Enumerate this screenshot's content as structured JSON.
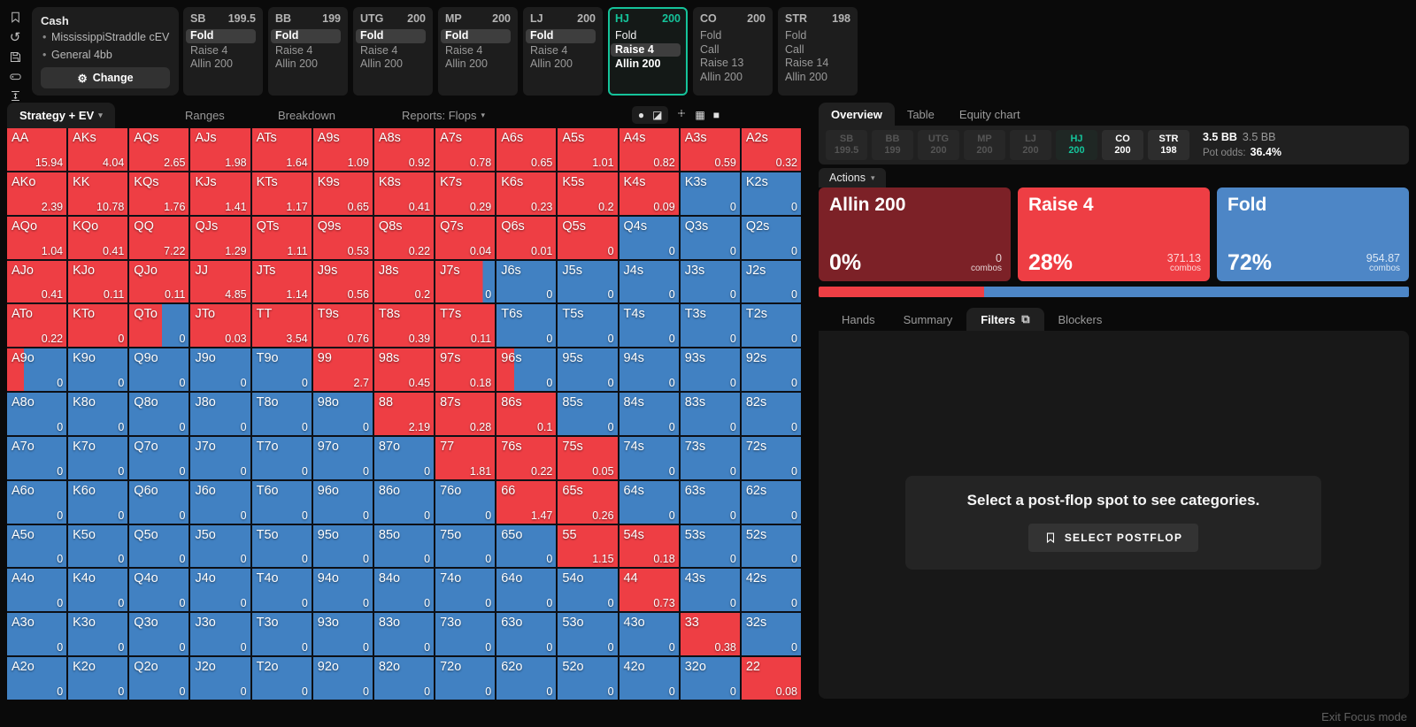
{
  "colors": {
    "red": "#ee3e44",
    "blue": "#4181c2",
    "dark_red": "#7c2127",
    "fold_card_blue": "#4d86c6",
    "teal": "#15c39a"
  },
  "rail_icons": [
    "bookmark-icon",
    "reset-icon",
    "save-icon",
    "controller-icon",
    "row-height-icon"
  ],
  "header": {
    "cash_title": "Cash",
    "config_lines": [
      "MississippiStraddle cEV",
      "General 4bb"
    ],
    "change_label": "Change",
    "gear_glyph": "⚙"
  },
  "top_positions": [
    {
      "name": "SB",
      "stack": "199.5",
      "active": false,
      "actions": [
        {
          "label": "Fold",
          "style": "pill"
        },
        {
          "label": "Raise 4",
          "style": "grey"
        },
        {
          "label": "Allin 200",
          "style": "grey"
        }
      ]
    },
    {
      "name": "BB",
      "stack": "199",
      "active": false,
      "actions": [
        {
          "label": "Fold",
          "style": "pill"
        },
        {
          "label": "Raise 4",
          "style": "grey"
        },
        {
          "label": "Allin 200",
          "style": "grey"
        }
      ]
    },
    {
      "name": "UTG",
      "stack": "200",
      "active": false,
      "actions": [
        {
          "label": "Fold",
          "style": "pill"
        },
        {
          "label": "Raise 4",
          "style": "grey"
        },
        {
          "label": "Allin 200",
          "style": "grey"
        }
      ]
    },
    {
      "name": "MP",
      "stack": "200",
      "active": false,
      "actions": [
        {
          "label": "Fold",
          "style": "pill"
        },
        {
          "label": "Raise 4",
          "style": "grey"
        },
        {
          "label": "Allin 200",
          "style": "grey"
        }
      ]
    },
    {
      "name": "LJ",
      "stack": "200",
      "active": false,
      "actions": [
        {
          "label": "Fold",
          "style": "pill"
        },
        {
          "label": "Raise 4",
          "style": "grey"
        },
        {
          "label": "Allin 200",
          "style": "grey"
        }
      ]
    },
    {
      "name": "HJ",
      "stack": "200",
      "active": true,
      "actions": [
        {
          "label": "Fold",
          "style": "white"
        },
        {
          "label": "Raise 4",
          "style": "pill"
        },
        {
          "label": "Allin 200",
          "style": "bold"
        }
      ]
    },
    {
      "name": "CO",
      "stack": "200",
      "active": false,
      "actions": [
        {
          "label": "Fold",
          "style": "grey"
        },
        {
          "label": "Call",
          "style": "grey"
        },
        {
          "label": "Raise 13",
          "style": "grey"
        },
        {
          "label": "Allin 200",
          "style": "grey"
        }
      ]
    },
    {
      "name": "STR",
      "stack": "198",
      "active": false,
      "actions": [
        {
          "label": "Fold",
          "style": "grey"
        },
        {
          "label": "Call",
          "style": "grey"
        },
        {
          "label": "Raise 14",
          "style": "grey"
        },
        {
          "label": "Allin 200",
          "style": "grey"
        }
      ]
    }
  ],
  "strategy_row": {
    "tabs": [
      {
        "label": "Strategy + EV",
        "caret": "▾",
        "active": true
      },
      {
        "label": "Ranges",
        "active": false
      },
      {
        "label": "Breakdown",
        "active": false
      },
      {
        "label": "Reports: Flops",
        "caret": "▾",
        "active": false
      }
    ],
    "view_icons": [
      "pawn-icon",
      "contrast-square-icon",
      "crosshair-icon",
      "grid-icon",
      "square-icon"
    ],
    "glyphs": {
      "pawn": "●",
      "contrast": "◪",
      "grid": "▦",
      "square": "■"
    }
  },
  "matrix": {
    "legend": {
      "r": "raise (red)",
      "b": "fold (blue)",
      "number": "red fraction of split cell"
    },
    "rows": [
      [
        [
          "AA",
          "15.94",
          "r"
        ],
        [
          "AKs",
          "4.04",
          "r"
        ],
        [
          "AQs",
          "2.65",
          "r"
        ],
        [
          "AJs",
          "1.98",
          "r"
        ],
        [
          "ATs",
          "1.64",
          "r"
        ],
        [
          "A9s",
          "1.09",
          "r"
        ],
        [
          "A8s",
          "0.92",
          "r"
        ],
        [
          "A7s",
          "0.78",
          "r"
        ],
        [
          "A6s",
          "0.65",
          "r"
        ],
        [
          "A5s",
          "1.01",
          "r"
        ],
        [
          "A4s",
          "0.82",
          "r"
        ],
        [
          "A3s",
          "0.59",
          "r"
        ],
        [
          "A2s",
          "0.32",
          "r"
        ]
      ],
      [
        [
          "AKo",
          "2.39",
          "r"
        ],
        [
          "KK",
          "10.78",
          "r"
        ],
        [
          "KQs",
          "1.76",
          "r"
        ],
        [
          "KJs",
          "1.41",
          "r"
        ],
        [
          "KTs",
          "1.17",
          "r"
        ],
        [
          "K9s",
          "0.65",
          "r"
        ],
        [
          "K8s",
          "0.41",
          "r"
        ],
        [
          "K7s",
          "0.29",
          "r"
        ],
        [
          "K6s",
          "0.23",
          "r"
        ],
        [
          "K5s",
          "0.2",
          "r"
        ],
        [
          "K4s",
          "0.09",
          "r"
        ],
        [
          "K3s",
          "0",
          "b"
        ],
        [
          "K2s",
          "0",
          "b"
        ]
      ],
      [
        [
          "AQo",
          "1.04",
          "r"
        ],
        [
          "KQo",
          "0.41",
          "r"
        ],
        [
          "QQ",
          "7.22",
          "r"
        ],
        [
          "QJs",
          "1.29",
          "r"
        ],
        [
          "QTs",
          "1.11",
          "r"
        ],
        [
          "Q9s",
          "0.53",
          "r"
        ],
        [
          "Q8s",
          "0.22",
          "r"
        ],
        [
          "Q7s",
          "0.04",
          "r"
        ],
        [
          "Q6s",
          "0.01",
          "r"
        ],
        [
          "Q5s",
          "0",
          "r"
        ],
        [
          "Q4s",
          "0",
          "b"
        ],
        [
          "Q3s",
          "0",
          "b"
        ],
        [
          "Q2s",
          "0",
          "b"
        ]
      ],
      [
        [
          "AJo",
          "0.41",
          "r"
        ],
        [
          "KJo",
          "0.11",
          "r"
        ],
        [
          "QJo",
          "0.11",
          "r"
        ],
        [
          "JJ",
          "4.85",
          "r"
        ],
        [
          "JTs",
          "1.14",
          "r"
        ],
        [
          "J9s",
          "0.56",
          "r"
        ],
        [
          "J8s",
          "0.2",
          "r"
        ],
        [
          "J7s",
          "0",
          0.8
        ],
        [
          "J6s",
          "0",
          "b"
        ],
        [
          "J5s",
          "0",
          "b"
        ],
        [
          "J4s",
          "0",
          "b"
        ],
        [
          "J3s",
          "0",
          "b"
        ],
        [
          "J2s",
          "0",
          "b"
        ]
      ],
      [
        [
          "ATo",
          "0.22",
          "r"
        ],
        [
          "KTo",
          "0",
          "r"
        ],
        [
          "QTo",
          "0",
          0.55
        ],
        [
          "JTo",
          "0.03",
          "r"
        ],
        [
          "TT",
          "3.54",
          "r"
        ],
        [
          "T9s",
          "0.76",
          "r"
        ],
        [
          "T8s",
          "0.39",
          "r"
        ],
        [
          "T7s",
          "0.11",
          "r"
        ],
        [
          "T6s",
          "0",
          "b"
        ],
        [
          "T5s",
          "0",
          "b"
        ],
        [
          "T4s",
          "0",
          "b"
        ],
        [
          "T3s",
          "0",
          "b"
        ],
        [
          "T2s",
          "0",
          "b"
        ]
      ],
      [
        [
          "A9o",
          "0",
          0.28
        ],
        [
          "K9o",
          "0",
          "b"
        ],
        [
          "Q9o",
          "0",
          "b"
        ],
        [
          "J9o",
          "0",
          "b"
        ],
        [
          "T9o",
          "0",
          "b"
        ],
        [
          "99",
          "2.7",
          "r"
        ],
        [
          "98s",
          "0.45",
          "r"
        ],
        [
          "97s",
          "0.18",
          "r"
        ],
        [
          "96s",
          "0",
          0.3
        ],
        [
          "95s",
          "0",
          "b"
        ],
        [
          "94s",
          "0",
          "b"
        ],
        [
          "93s",
          "0",
          "b"
        ],
        [
          "92s",
          "0",
          "b"
        ]
      ],
      [
        [
          "A8o",
          "0",
          "b"
        ],
        [
          "K8o",
          "0",
          "b"
        ],
        [
          "Q8o",
          "0",
          "b"
        ],
        [
          "J8o",
          "0",
          "b"
        ],
        [
          "T8o",
          "0",
          "b"
        ],
        [
          "98o",
          "0",
          "b"
        ],
        [
          "88",
          "2.19",
          "r"
        ],
        [
          "87s",
          "0.28",
          "r"
        ],
        [
          "86s",
          "0.1",
          "r"
        ],
        [
          "85s",
          "0",
          "b"
        ],
        [
          "84s",
          "0",
          "b"
        ],
        [
          "83s",
          "0",
          "b"
        ],
        [
          "82s",
          "0",
          "b"
        ]
      ],
      [
        [
          "A7o",
          "0",
          "b"
        ],
        [
          "K7o",
          "0",
          "b"
        ],
        [
          "Q7o",
          "0",
          "b"
        ],
        [
          "J7o",
          "0",
          "b"
        ],
        [
          "T7o",
          "0",
          "b"
        ],
        [
          "97o",
          "0",
          "b"
        ],
        [
          "87o",
          "0",
          "b"
        ],
        [
          "77",
          "1.81",
          "r"
        ],
        [
          "76s",
          "0.22",
          "r"
        ],
        [
          "75s",
          "0.05",
          "r"
        ],
        [
          "74s",
          "0",
          "b"
        ],
        [
          "73s",
          "0",
          "b"
        ],
        [
          "72s",
          "0",
          "b"
        ]
      ],
      [
        [
          "A6o",
          "0",
          "b"
        ],
        [
          "K6o",
          "0",
          "b"
        ],
        [
          "Q6o",
          "0",
          "b"
        ],
        [
          "J6o",
          "0",
          "b"
        ],
        [
          "T6o",
          "0",
          "b"
        ],
        [
          "96o",
          "0",
          "b"
        ],
        [
          "86o",
          "0",
          "b"
        ],
        [
          "76o",
          "0",
          "b"
        ],
        [
          "66",
          "1.47",
          "r"
        ],
        [
          "65s",
          "0.26",
          "r"
        ],
        [
          "64s",
          "0",
          "b"
        ],
        [
          "63s",
          "0",
          "b"
        ],
        [
          "62s",
          "0",
          "b"
        ]
      ],
      [
        [
          "A5o",
          "0",
          "b"
        ],
        [
          "K5o",
          "0",
          "b"
        ],
        [
          "Q5o",
          "0",
          "b"
        ],
        [
          "J5o",
          "0",
          "b"
        ],
        [
          "T5o",
          "0",
          "b"
        ],
        [
          "95o",
          "0",
          "b"
        ],
        [
          "85o",
          "0",
          "b"
        ],
        [
          "75o",
          "0",
          "b"
        ],
        [
          "65o",
          "0",
          "b"
        ],
        [
          "55",
          "1.15",
          "r"
        ],
        [
          "54s",
          "0.18",
          "r"
        ],
        [
          "53s",
          "0",
          "b"
        ],
        [
          "52s",
          "0",
          "b"
        ]
      ],
      [
        [
          "A4o",
          "0",
          "b"
        ],
        [
          "K4o",
          "0",
          "b"
        ],
        [
          "Q4o",
          "0",
          "b"
        ],
        [
          "J4o",
          "0",
          "b"
        ],
        [
          "T4o",
          "0",
          "b"
        ],
        [
          "94o",
          "0",
          "b"
        ],
        [
          "84o",
          "0",
          "b"
        ],
        [
          "74o",
          "0",
          "b"
        ],
        [
          "64o",
          "0",
          "b"
        ],
        [
          "54o",
          "0",
          "b"
        ],
        [
          "44",
          "0.73",
          "r"
        ],
        [
          "43s",
          "0",
          "b"
        ],
        [
          "42s",
          "0",
          "b"
        ]
      ],
      [
        [
          "A3o",
          "0",
          "b"
        ],
        [
          "K3o",
          "0",
          "b"
        ],
        [
          "Q3o",
          "0",
          "b"
        ],
        [
          "J3o",
          "0",
          "b"
        ],
        [
          "T3o",
          "0",
          "b"
        ],
        [
          "93o",
          "0",
          "b"
        ],
        [
          "83o",
          "0",
          "b"
        ],
        [
          "73o",
          "0",
          "b"
        ],
        [
          "63o",
          "0",
          "b"
        ],
        [
          "53o",
          "0",
          "b"
        ],
        [
          "43o",
          "0",
          "b"
        ],
        [
          "33",
          "0.38",
          "r"
        ],
        [
          "32s",
          "0",
          "b"
        ]
      ],
      [
        [
          "A2o",
          "0",
          "b"
        ],
        [
          "K2o",
          "0",
          "b"
        ],
        [
          "Q2o",
          "0",
          "b"
        ],
        [
          "J2o",
          "0",
          "b"
        ],
        [
          "T2o",
          "0",
          "b"
        ],
        [
          "92o",
          "0",
          "b"
        ],
        [
          "82o",
          "0",
          "b"
        ],
        [
          "72o",
          "0",
          "b"
        ],
        [
          "62o",
          "0",
          "b"
        ],
        [
          "52o",
          "0",
          "b"
        ],
        [
          "42o",
          "0",
          "b"
        ],
        [
          "32o",
          "0",
          "b"
        ],
        [
          "22",
          "0.08",
          "r"
        ]
      ]
    ]
  },
  "overview": {
    "tabs": [
      {
        "label": "Overview",
        "active": true
      },
      {
        "label": "Table",
        "active": false
      },
      {
        "label": "Equity chart",
        "active": false
      }
    ],
    "positions": [
      {
        "name": "SB",
        "stack": "199.5",
        "state": "dim"
      },
      {
        "name": "BB",
        "stack": "199",
        "state": "dim"
      },
      {
        "name": "UTG",
        "stack": "200",
        "state": "dim"
      },
      {
        "name": "MP",
        "stack": "200",
        "state": "dim"
      },
      {
        "name": "LJ",
        "stack": "200",
        "state": "dim"
      },
      {
        "name": "HJ",
        "stack": "200",
        "state": "hj"
      },
      {
        "name": "CO",
        "stack": "200",
        "state": "lit"
      },
      {
        "name": "STR",
        "stack": "198",
        "state": "lit"
      }
    ],
    "pot_bb_bold": "3.5 BB",
    "pot_bb": "3.5 BB",
    "pot_odds_label": "Pot odds:",
    "pot_odds_value": "36.4%",
    "actions_label": "Actions",
    "actions_caret": "▾",
    "cards": [
      {
        "label": "Allin 200",
        "pct": "0%",
        "combos": "0",
        "color": "#7c2127"
      },
      {
        "label": "Raise 4",
        "pct": "28%",
        "combos": "371.13",
        "color": "#ee3e44"
      },
      {
        "label": "Fold",
        "pct": "72%",
        "combos": "954.87",
        "color": "#4d86c6"
      }
    ],
    "combos_unit": "combos",
    "bar": [
      {
        "color": "#ee3e44",
        "width_pct": 28
      },
      {
        "color": "#4d86c6",
        "width_pct": 72
      }
    ],
    "sub_tabs": [
      {
        "label": "Hands",
        "active": false
      },
      {
        "label": "Summary",
        "active": false
      },
      {
        "label": "Filters",
        "active": true,
        "icon": "⧉"
      },
      {
        "label": "Blockers",
        "active": false
      }
    ],
    "empty_state": {
      "message": "Select a post-flop spot to see categories.",
      "button_label": "SELECT POSTFLOP"
    }
  },
  "footer": {
    "exit_label": "Exit Focus mode"
  }
}
